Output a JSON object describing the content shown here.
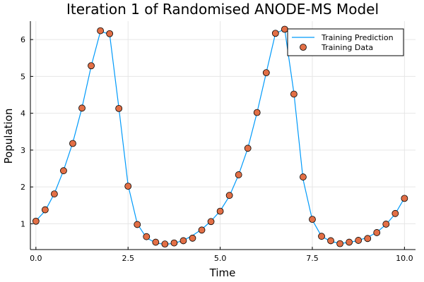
{
  "chart_data": {
    "type": "line",
    "title": "Iteration 1 of Randomised ANODE-MS Model",
    "xlabel": "Time",
    "ylabel": "Population",
    "xlim": [
      -0.15,
      10.3
    ],
    "ylim": [
      0.3,
      6.5
    ],
    "xticks": [
      0.0,
      2.5,
      5.0,
      7.5,
      10.0
    ],
    "xtick_labels": [
      "0.0",
      "2.5",
      "5.0",
      "7.5",
      "10.0"
    ],
    "yticks": [
      1,
      2,
      3,
      4,
      5,
      6
    ],
    "ytick_labels": [
      "1",
      "2",
      "3",
      "4",
      "5",
      "6"
    ],
    "grid": true,
    "legend_position": "top-right",
    "series": [
      {
        "name": "Training Prediction",
        "kind": "line",
        "color": "#009AFA",
        "x": [
          0.0,
          0.25,
          0.5,
          0.75,
          1.0,
          1.25,
          1.5,
          1.75,
          2.0,
          2.25,
          2.5,
          2.75,
          3.0,
          3.25,
          3.5,
          3.75,
          4.0,
          4.25,
          4.5,
          4.75,
          5.0,
          5.25,
          5.5,
          5.75,
          6.0,
          6.25,
          6.5,
          6.75,
          7.0,
          7.25,
          7.5,
          7.75,
          8.0,
          8.25,
          8.5,
          8.75,
          9.0,
          9.25,
          9.5,
          9.75,
          10.0
        ],
        "y": [
          1.08,
          1.35,
          1.82,
          2.45,
          3.2,
          4.15,
          5.28,
          6.22,
          6.15,
          4.15,
          2.05,
          1.0,
          0.62,
          0.48,
          0.44,
          0.47,
          0.55,
          0.68,
          0.85,
          1.07,
          1.35,
          1.75,
          2.33,
          3.05,
          4.02,
          5.1,
          6.17,
          6.28,
          4.55,
          2.2,
          1.1,
          0.66,
          0.52,
          0.47,
          0.49,
          0.55,
          0.63,
          0.77,
          0.98,
          1.27,
          1.7
        ]
      },
      {
        "name": "Training Data",
        "kind": "scatter",
        "color": "#E26F46",
        "x": [
          0.0,
          0.25,
          0.5,
          0.75,
          1.0,
          1.25,
          1.5,
          1.75,
          2.0,
          2.25,
          2.5,
          2.75,
          3.0,
          3.25,
          3.5,
          3.75,
          4.0,
          4.25,
          4.5,
          4.75,
          5.0,
          5.25,
          5.5,
          5.75,
          6.0,
          6.25,
          6.5,
          6.75,
          7.0,
          7.25,
          7.5,
          7.75,
          8.0,
          8.25,
          8.5,
          8.75,
          9.0,
          9.25,
          9.5,
          9.75,
          10.0
        ],
        "y": [
          1.07,
          1.38,
          1.81,
          2.44,
          3.18,
          4.14,
          5.29,
          6.24,
          6.16,
          4.13,
          2.02,
          0.98,
          0.65,
          0.5,
          0.45,
          0.48,
          0.54,
          0.61,
          0.83,
          1.06,
          1.34,
          1.77,
          2.33,
          3.05,
          4.02,
          5.1,
          6.17,
          6.28,
          4.52,
          2.27,
          1.12,
          0.66,
          0.54,
          0.46,
          0.5,
          0.55,
          0.6,
          0.76,
          0.99,
          1.28,
          1.69
        ]
      }
    ]
  }
}
